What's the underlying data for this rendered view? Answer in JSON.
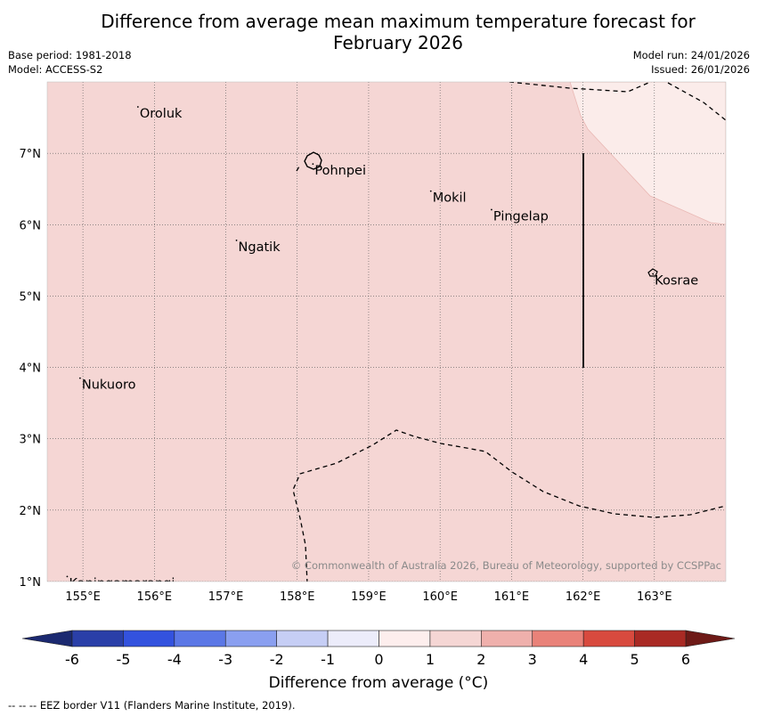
{
  "title": {
    "line1": "Difference from average mean maximum temperature forecast for",
    "line2": "February 2026"
  },
  "meta": {
    "base_period": "Base period: 1981-2018",
    "model": "Model: ACCESS-S2",
    "model_run": "Model run: 24/01/2026",
    "issued": "Issued: 26/01/2026"
  },
  "map": {
    "lon_range": [
      154.5,
      164.0
    ],
    "lat_range": [
      1.0,
      8.0
    ],
    "lon_ticks": [
      {
        "value": 155,
        "label": "155°E"
      },
      {
        "value": 156,
        "label": "156°E"
      },
      {
        "value": 157,
        "label": "157°E"
      },
      {
        "value": 158,
        "label": "158°E"
      },
      {
        "value": 159,
        "label": "159°E"
      },
      {
        "value": 160,
        "label": "160°E"
      },
      {
        "value": 161,
        "label": "161°E"
      },
      {
        "value": 162,
        "label": "162°E"
      },
      {
        "value": 163,
        "label": "163°E"
      }
    ],
    "lat_ticks": [
      {
        "value": 1,
        "label": "1°N"
      },
      {
        "value": 2,
        "label": "2°N"
      },
      {
        "value": 3,
        "label": "3°N"
      },
      {
        "value": 4,
        "label": "4°N"
      },
      {
        "value": 5,
        "label": "5°N"
      },
      {
        "value": 6,
        "label": "6°N"
      },
      {
        "value": 7,
        "label": "7°N"
      }
    ],
    "places": [
      {
        "name": "Oroluk",
        "lon": 155.77,
        "lat": 7.65
      },
      {
        "name": "Pohnpei",
        "lon": 158.22,
        "lat": 6.85
      },
      {
        "name": "Mokil",
        "lon": 159.87,
        "lat": 6.47
      },
      {
        "name": "Pingelap",
        "lon": 160.72,
        "lat": 6.21
      },
      {
        "name": "Ngatik",
        "lon": 157.15,
        "lat": 5.78
      },
      {
        "name": "Kosrae",
        "lon": 162.98,
        "lat": 5.31
      },
      {
        "name": "Nukuoro",
        "lon": 154.96,
        "lat": 3.85
      },
      {
        "name": "Kapingamarangi",
        "lon": 154.78,
        "lat": 1.07
      }
    ],
    "anomaly_main_band": "1 to 2 °C",
    "anomaly_ne_band": "0 to 1 °C",
    "colors": {
      "main": "#f5d6d4",
      "ne_region": "#fbecea",
      "border": "#000000",
      "grid": "#555555"
    },
    "copyright": "© Commonwealth of Australia 2026, Bureau of Meteorology, supported by CCSPPac"
  },
  "colorbar": {
    "ticks": [
      "-6",
      "-5",
      "-4",
      "-3",
      "-2",
      "-1",
      "0",
      "1",
      "2",
      "3",
      "4",
      "5",
      "6"
    ],
    "colors": [
      "#2a3fa8",
      "#3352de",
      "#5b77e6",
      "#8a9ff0",
      "#c6cef5",
      "#ececfa",
      "#fdeeed",
      "#f5d6d4",
      "#efb0ac",
      "#e98279",
      "#d84a3e",
      "#a92a24"
    ],
    "under_color": "#1b2970",
    "over_color": "#6e1a17",
    "title": "Difference from average (°C)"
  },
  "footer": "-- -- -- EEZ border V11 (Flanders Marine Institute, 2019)."
}
